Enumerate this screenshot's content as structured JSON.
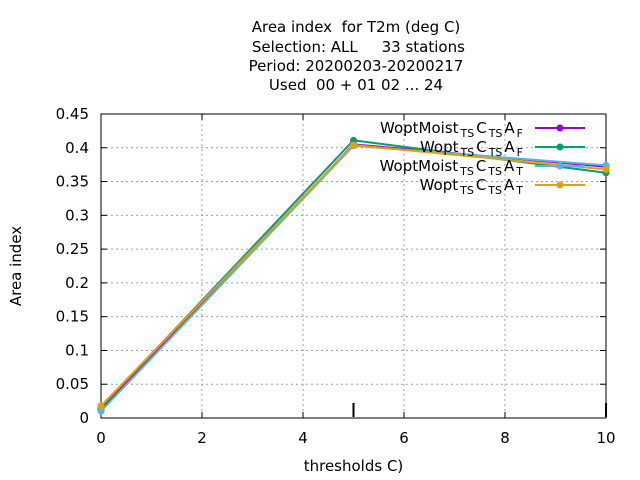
{
  "title_lines": [
    "Area index  for T2m (deg C)",
    " Selection: ALL     33 stations",
    "Period: 20200203-20200217",
    "Used  00 + 01 02 ... 24"
  ],
  "colors": {
    "series_1": "#9400d3",
    "series_2": "#009e73",
    "series_3": "#56b4e9",
    "series_4": "#e69f00",
    "grid": "#a0a0a0",
    "axis": "#000000"
  },
  "chart_data": {
    "type": "line",
    "xlabel": "thresholds C)",
    "ylabel": "Area index",
    "xlim": [
      0,
      10
    ],
    "ylim": [
      0,
      0.45
    ],
    "x_ticks": [
      "0",
      "2",
      "4",
      "6",
      "8",
      "10"
    ],
    "y_ticks": [
      "0",
      "0.05",
      "0.1",
      "0.15",
      "0.2",
      "0.25",
      "0.3",
      "0.35",
      "0.4",
      "0.45"
    ],
    "grid": true,
    "legend_position": "top-right",
    "series": [
      {
        "legend": {
          "base": "WoptMoist",
          "parts": [
            [
              "TS",
              "C"
            ],
            [
              "TS",
              "A"
            ],
            [
              "F",
              ""
            ]
          ]
        },
        "color": "#9400d3",
        "x": [
          0,
          5,
          10
        ],
        "y": [
          0.012,
          0.405,
          0.372
        ]
      },
      {
        "legend": {
          "base": "Wopt",
          "parts": [
            [
              "TS",
              "C"
            ],
            [
              "TS",
              "A"
            ],
            [
              "F",
              ""
            ]
          ]
        },
        "color": "#009e73",
        "x": [
          0,
          5,
          10
        ],
        "y": [
          0.016,
          0.411,
          0.363
        ]
      },
      {
        "legend": {
          "base": "WoptMoist",
          "parts": [
            [
              "TS",
              "C"
            ],
            [
              "TS",
              "A"
            ],
            [
              "T",
              ""
            ]
          ]
        },
        "color": "#56b4e9",
        "x": [
          0,
          5,
          10
        ],
        "y": [
          0.01,
          0.403,
          0.374
        ]
      },
      {
        "legend": {
          "base": "Wopt",
          "parts": [
            [
              "TS",
              "C"
            ],
            [
              "TS",
              "A"
            ],
            [
              "T",
              ""
            ]
          ]
        },
        "color": "#e69f00",
        "x": [
          0,
          5,
          10
        ],
        "y": [
          0.018,
          0.404,
          0.368
        ]
      }
    ],
    "event_markers_x": [
      5,
      10
    ]
  }
}
